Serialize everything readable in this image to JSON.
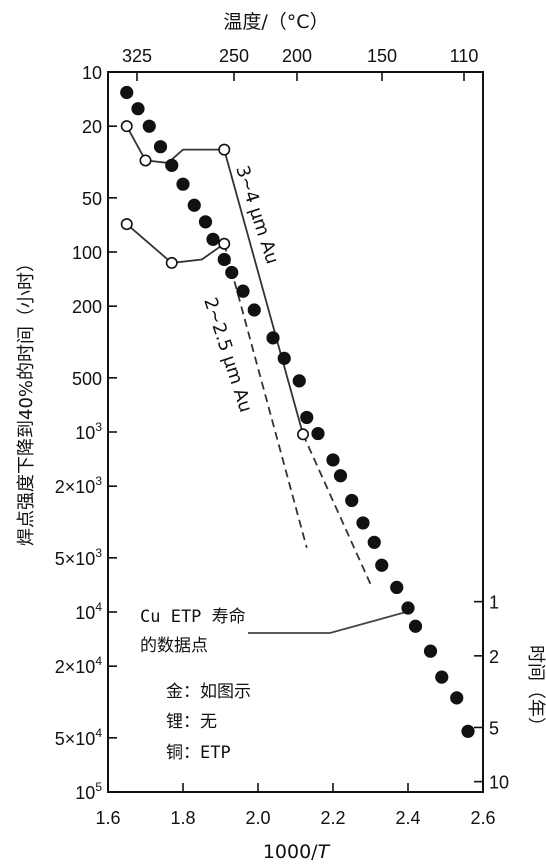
{
  "chart_data": {
    "type": "scatter",
    "title": "",
    "top_axis_label": "温度/（°C）",
    "top_ticks": [
      "325",
      "250",
      "200",
      "150",
      "110"
    ],
    "xlabel": "1000/T",
    "xlabel_italic_part": "T",
    "xlim": [
      1.6,
      2.6
    ],
    "x_ticks": [
      1.6,
      1.8,
      2.0,
      2.2,
      2.4,
      2.6
    ],
    "x_tick_labels": [
      "1.6",
      "1.8",
      "2.0",
      "2.2",
      "2.4",
      "2.6"
    ],
    "ylabel": "焊点强度下降到40%的时间（小时）",
    "y_scale": "log",
    "ylim": [
      10,
      100000
    ],
    "y_ticks": [
      {
        "value": 10,
        "label": "10"
      },
      {
        "value": 20,
        "label": "20"
      },
      {
        "value": 50,
        "label": "50"
      },
      {
        "value": 100,
        "label": "100"
      },
      {
        "value": 200,
        "label": "200"
      },
      {
        "value": 500,
        "label": "500"
      },
      {
        "value": 1000,
        "label": "10",
        "sup": "3"
      },
      {
        "value": 2000,
        "label": "2×10",
        "sup": "3"
      },
      {
        "value": 5000,
        "label": "5×10",
        "sup": "3"
      },
      {
        "value": 10000,
        "label": "10",
        "sup": "4"
      },
      {
        "value": 20000,
        "label": "2×10",
        "sup": "4"
      },
      {
        "value": 50000,
        "label": "5×10",
        "sup": "4"
      },
      {
        "value": 100000,
        "label": "10",
        "sup": "5"
      }
    ],
    "right_axis_label": "时间（年）",
    "right_ticks": [
      "1",
      "2",
      "5",
      "10"
    ],
    "series": [
      {
        "name": "Cu ETP 寿命的数据点",
        "marker": "filled-circle",
        "points": [
          [
            1.65,
            13
          ],
          [
            1.68,
            16
          ],
          [
            1.71,
            20
          ],
          [
            1.74,
            26
          ],
          [
            1.77,
            33
          ],
          [
            1.8,
            42
          ],
          [
            1.83,
            55
          ],
          [
            1.86,
            68
          ],
          [
            1.88,
            85
          ],
          [
            1.91,
            110
          ],
          [
            1.93,
            130
          ],
          [
            1.96,
            165
          ],
          [
            1.99,
            210
          ],
          [
            2.04,
            300
          ],
          [
            2.07,
            390
          ],
          [
            2.11,
            520
          ],
          [
            2.13,
            830
          ],
          [
            2.16,
            1020
          ],
          [
            2.2,
            1430
          ],
          [
            2.22,
            1750
          ],
          [
            2.25,
            2400
          ],
          [
            2.28,
            3200
          ],
          [
            2.31,
            4100
          ],
          [
            2.33,
            5500
          ],
          [
            2.37,
            7300
          ],
          [
            2.4,
            9500
          ],
          [
            2.42,
            12000
          ],
          [
            2.46,
            16500
          ],
          [
            2.49,
            23000
          ],
          [
            2.53,
            30000
          ],
          [
            2.56,
            46000
          ]
        ]
      },
      {
        "name": "3~4 µm Au",
        "marker": "open-circle",
        "points": [
          [
            1.65,
            20
          ],
          [
            1.7,
            31
          ],
          [
            1.76,
            32
          ],
          [
            1.8,
            27
          ],
          [
            1.91,
            27
          ],
          [
            2.12,
            1030
          ]
        ]
      },
      {
        "name": "2~2.5 µm Au",
        "marker": "open-circle",
        "points": [
          [
            1.65,
            70
          ],
          [
            1.77,
            115
          ],
          [
            1.85,
            110
          ],
          [
            1.91,
            90
          ]
        ]
      }
    ],
    "dashed_lines": [
      {
        "from": [
          1.91,
          90
        ],
        "to": [
          2.13,
          4400
        ]
      },
      {
        "from": [
          2.12,
          1030
        ],
        "to": [
          2.3,
          7000
        ]
      }
    ],
    "line_labels": [
      "3~4 µm Au",
      "2~2.5 µm Au"
    ],
    "annotations": [
      "Cu ETP 寿命",
      "的数据点",
      "金：如图示",
      "锂：无",
      "铜：ETP"
    ]
  }
}
